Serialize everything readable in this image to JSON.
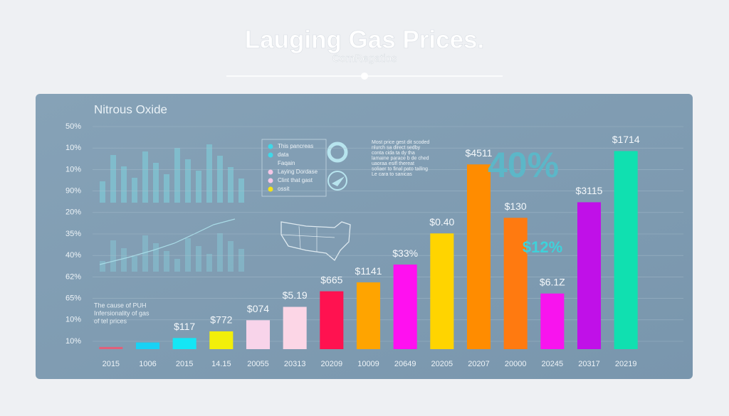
{
  "chart_data": {
    "type": "bar",
    "title": "Lauging Gas Prices.",
    "subtitle": "ComRegatios",
    "panel_title": "Nitrous Oxide",
    "y_labels": [
      "50%",
      "10%",
      "10%",
      "90%",
      "20%",
      "35%",
      "40%",
      "62%",
      "65%",
      "10%",
      "10%"
    ],
    "categories": [
      "2015",
      "1006",
      "2015",
      "14.15",
      "20055",
      "20313",
      "20209",
      "10009",
      "20649",
      "20205",
      "20207",
      "20000",
      "20245",
      "20317",
      "20219"
    ],
    "values": [
      1,
      3,
      5,
      8,
      13,
      19,
      26,
      30,
      38,
      52,
      83,
      59,
      25,
      66,
      89
    ],
    "value_labels": [
      null,
      null,
      "$117",
      "$772",
      "$074",
      "$5.19",
      "$665",
      "$1141",
      "$33%",
      "$0.40",
      "$4511",
      "$130",
      "$6.1Z",
      "$3115",
      "$1714"
    ],
    "colors": [
      "#e0607a",
      "#19d2f5",
      "#14e6f5",
      "#f2ef0a",
      "#f8d4ea",
      "#fcd6e6",
      "#ff1250",
      "#ffa400",
      "#ff10f0",
      "#ffd400",
      "#ff8c00",
      "#ff7a10",
      "#f814ee",
      "#c010e8",
      "#10e0b0"
    ],
    "ylim": [
      0,
      100
    ],
    "annotations": [
      "40%",
      "$12%"
    ],
    "notes": [
      "The cause of PUH",
      "Infersionality of gas",
      "of tel prices"
    ],
    "legend_notes": [
      "This pancreas",
      "data",
      "Faqain",
      "Laying Dordase",
      "Clint that gast",
      "ossit"
    ],
    "text_block": [
      "Most price gest dit scoded",
      "nlurch sa direct sedby",
      "conta cida ta dy tha",
      "lamaine parace b de ched",
      "uaoraa esifl thereat",
      "soliaer to final pato tailing",
      "Le cara to sanicas"
    ]
  }
}
